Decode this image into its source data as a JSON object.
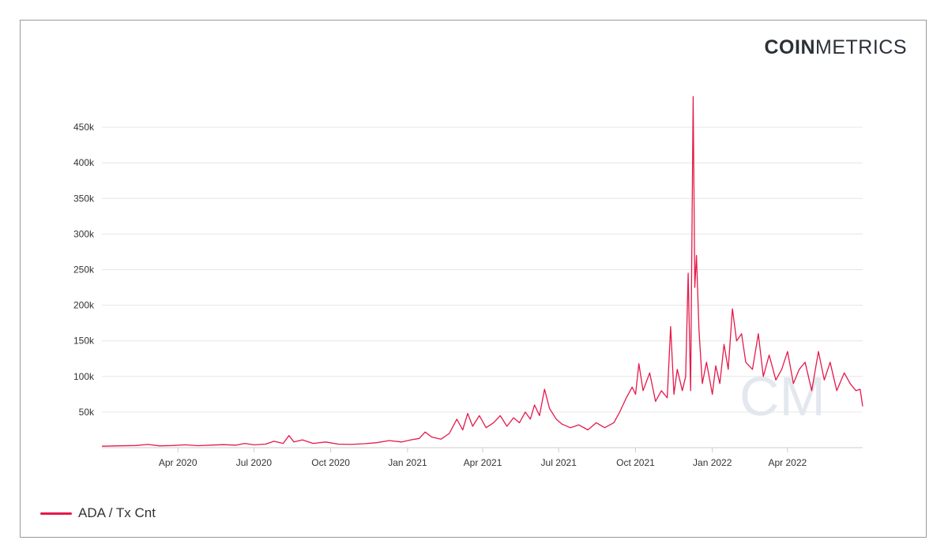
{
  "brand": {
    "logo_bold": "COIN",
    "logo_light": "METRICS",
    "watermark": "CM"
  },
  "chart_data": {
    "type": "line",
    "title": "",
    "xlabel": "",
    "ylabel": "",
    "ylim": [
      0,
      500000
    ],
    "y_ticks": [
      50000,
      100000,
      150000,
      200000,
      250000,
      300000,
      350000,
      400000,
      450000
    ],
    "y_tick_labels": [
      "50k",
      "100k",
      "150k",
      "200k",
      "250k",
      "300k",
      "350k",
      "400k",
      "450k"
    ],
    "x_range": [
      "2020-01-01",
      "2022-06-30"
    ],
    "x_ticks": [
      {
        "date": "2020-04-01",
        "label": "Apr 2020"
      },
      {
        "date": "2020-07-01",
        "label": "Jul 2020"
      },
      {
        "date": "2020-10-01",
        "label": "Oct 2020"
      },
      {
        "date": "2021-01-01",
        "label": "Jan 2021"
      },
      {
        "date": "2021-04-01",
        "label": "Apr 2021"
      },
      {
        "date": "2021-07-01",
        "label": "Jul 2021"
      },
      {
        "date": "2021-10-01",
        "label": "Oct 2021"
      },
      {
        "date": "2022-01-01",
        "label": "Jan 2022"
      },
      {
        "date": "2022-04-01",
        "label": "Apr 2022"
      }
    ],
    "grid": true,
    "legend_position": "bottom-left",
    "series": [
      {
        "name": "ADA / Tx Cnt",
        "color": "#e5194a",
        "points": [
          [
            "2020-01-01",
            2000
          ],
          [
            "2020-01-20",
            2500
          ],
          [
            "2020-02-10",
            3000
          ],
          [
            "2020-02-25",
            4500
          ],
          [
            "2020-03-10",
            2500
          ],
          [
            "2020-03-25",
            3000
          ],
          [
            "2020-04-10",
            4000
          ],
          [
            "2020-04-25",
            2800
          ],
          [
            "2020-05-10",
            3500
          ],
          [
            "2020-05-25",
            4200
          ],
          [
            "2020-06-10",
            3500
          ],
          [
            "2020-06-20",
            6000
          ],
          [
            "2020-07-01",
            4000
          ],
          [
            "2020-07-15",
            5000
          ],
          [
            "2020-07-25",
            9000
          ],
          [
            "2020-08-05",
            6000
          ],
          [
            "2020-08-12",
            17000
          ],
          [
            "2020-08-18",
            8000
          ],
          [
            "2020-08-28",
            11000
          ],
          [
            "2020-09-10",
            6000
          ],
          [
            "2020-09-25",
            8000
          ],
          [
            "2020-10-10",
            5000
          ],
          [
            "2020-10-25",
            4500
          ],
          [
            "2020-11-10",
            5500
          ],
          [
            "2020-11-25",
            7000
          ],
          [
            "2020-12-10",
            10000
          ],
          [
            "2020-12-25",
            8000
          ],
          [
            "2021-01-05",
            11000
          ],
          [
            "2021-01-15",
            13000
          ],
          [
            "2021-01-22",
            22000
          ],
          [
            "2021-01-30",
            15000
          ],
          [
            "2021-02-10",
            12000
          ],
          [
            "2021-02-20",
            20000
          ],
          [
            "2021-03-01",
            40000
          ],
          [
            "2021-03-08",
            25000
          ],
          [
            "2021-03-14",
            48000
          ],
          [
            "2021-03-20",
            30000
          ],
          [
            "2021-03-28",
            45000
          ],
          [
            "2021-04-05",
            28000
          ],
          [
            "2021-04-14",
            35000
          ],
          [
            "2021-04-22",
            45000
          ],
          [
            "2021-04-30",
            30000
          ],
          [
            "2021-05-08",
            42000
          ],
          [
            "2021-05-15",
            35000
          ],
          [
            "2021-05-22",
            50000
          ],
          [
            "2021-05-28",
            40000
          ],
          [
            "2021-06-02",
            60000
          ],
          [
            "2021-06-08",
            45000
          ],
          [
            "2021-06-14",
            82000
          ],
          [
            "2021-06-20",
            55000
          ],
          [
            "2021-06-28",
            40000
          ],
          [
            "2021-07-05",
            33000
          ],
          [
            "2021-07-15",
            28000
          ],
          [
            "2021-07-25",
            32000
          ],
          [
            "2021-08-05",
            25000
          ],
          [
            "2021-08-15",
            35000
          ],
          [
            "2021-08-25",
            28000
          ],
          [
            "2021-09-05",
            35000
          ],
          [
            "2021-09-12",
            50000
          ],
          [
            "2021-09-20",
            70000
          ],
          [
            "2021-09-27",
            85000
          ],
          [
            "2021-10-01",
            75000
          ],
          [
            "2021-10-05",
            118000
          ],
          [
            "2021-10-10",
            80000
          ],
          [
            "2021-10-18",
            105000
          ],
          [
            "2021-10-25",
            65000
          ],
          [
            "2021-11-01",
            80000
          ],
          [
            "2021-11-08",
            70000
          ],
          [
            "2021-11-12",
            170000
          ],
          [
            "2021-11-16",
            75000
          ],
          [
            "2021-11-20",
            110000
          ],
          [
            "2021-11-26",
            80000
          ],
          [
            "2021-11-30",
            100000
          ],
          [
            "2021-12-03",
            245000
          ],
          [
            "2021-12-06",
            80000
          ],
          [
            "2021-12-09",
            493000
          ],
          [
            "2021-12-11",
            225000
          ],
          [
            "2021-12-13",
            270000
          ],
          [
            "2021-12-16",
            165000
          ],
          [
            "2021-12-20",
            90000
          ],
          [
            "2021-12-25",
            120000
          ],
          [
            "2022-01-01",
            75000
          ],
          [
            "2022-01-05",
            115000
          ],
          [
            "2022-01-10",
            90000
          ],
          [
            "2022-01-15",
            145000
          ],
          [
            "2022-01-20",
            110000
          ],
          [
            "2022-01-25",
            195000
          ],
          [
            "2022-01-30",
            150000
          ],
          [
            "2022-02-05",
            160000
          ],
          [
            "2022-02-10",
            120000
          ],
          [
            "2022-02-18",
            110000
          ],
          [
            "2022-02-25",
            160000
          ],
          [
            "2022-03-03",
            100000
          ],
          [
            "2022-03-10",
            130000
          ],
          [
            "2022-03-18",
            95000
          ],
          [
            "2022-03-25",
            110000
          ],
          [
            "2022-04-01",
            135000
          ],
          [
            "2022-04-08",
            90000
          ],
          [
            "2022-04-15",
            110000
          ],
          [
            "2022-04-22",
            120000
          ],
          [
            "2022-04-30",
            80000
          ],
          [
            "2022-05-08",
            135000
          ],
          [
            "2022-05-15",
            95000
          ],
          [
            "2022-05-22",
            120000
          ],
          [
            "2022-05-30",
            80000
          ],
          [
            "2022-06-08",
            105000
          ],
          [
            "2022-06-15",
            90000
          ],
          [
            "2022-06-22",
            80000
          ],
          [
            "2022-06-27",
            82000
          ],
          [
            "2022-06-30",
            58000
          ]
        ]
      }
    ]
  }
}
